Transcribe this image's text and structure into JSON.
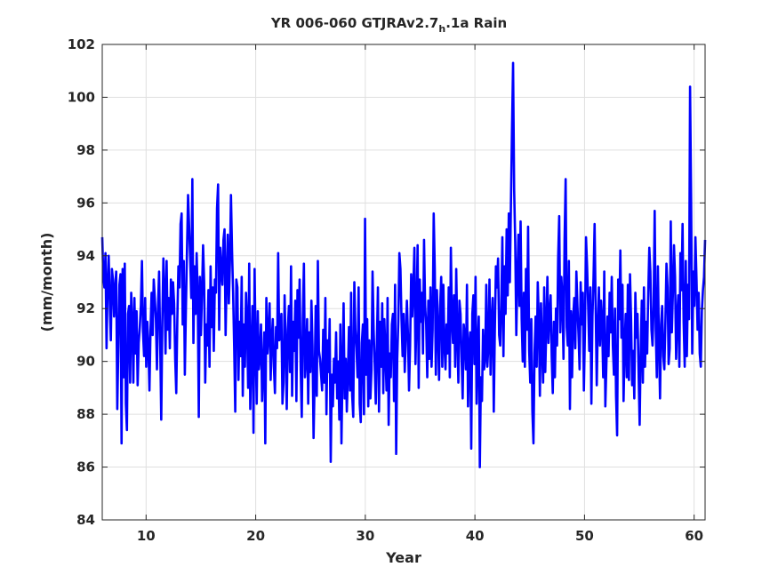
{
  "chart_data": {
    "type": "line",
    "title": {
      "main": "YR 006-060 GTJRAv2.7",
      "subscript": "h",
      "suffix": ".1a Rain"
    },
    "xlabel": "Year",
    "ylabel": "(mm/month)",
    "xlim": [
      6,
      61
    ],
    "ylim": [
      84,
      102
    ],
    "xticks": [
      10,
      20,
      30,
      40,
      50,
      60
    ],
    "yticks": [
      84,
      86,
      88,
      90,
      92,
      94,
      96,
      98,
      100,
      102
    ],
    "grid": true,
    "series": [
      {
        "color": "#0000ff",
        "x_start": 6,
        "x_step": 0.083333,
        "values": [
          94.7,
          93.2,
          92.8,
          94.1,
          90.5,
          92.9,
          94.0,
          92.3,
          90.8,
          93.5,
          93.1,
          91.7,
          92.8,
          93.4,
          88.2,
          90.6,
          92.9,
          93.3,
          86.9,
          93.5,
          89.4,
          93.7,
          88.4,
          87.4,
          91.8,
          92.1,
          89.2,
          92.6,
          91.5,
          89.2,
          92.4,
          90.3,
          91.9,
          89.1,
          90.7,
          91.3,
          92.1,
          93.8,
          91.1,
          90.2,
          92.4,
          89.8,
          91.5,
          90.6,
          88.9,
          91.2,
          92.6,
          91.0,
          93.1,
          92.4,
          91.6,
          89.7,
          92.1,
          93.4,
          90.7,
          87.8,
          91.5,
          93.9,
          92.7,
          90.3,
          93.8,
          91.2,
          92.4,
          90.5,
          93.1,
          91.8,
          93.0,
          92.2,
          90.1,
          88.8,
          91.6,
          93.6,
          92.8,
          95.2,
          95.6,
          91.4,
          93.8,
          89.5,
          92.0,
          94.2,
          96.3,
          95.1,
          93.9,
          92.4,
          96.9,
          90.7,
          93.6,
          91.8,
          94.1,
          92.5,
          87.9,
          93.2,
          91.0,
          92.6,
          94.4,
          93.0,
          89.2,
          91.4,
          90.6,
          92.7,
          89.8,
          93.6,
          91.3,
          92.8,
          90.4,
          93.1,
          92.6,
          95.8,
          96.7,
          91.2,
          94.3,
          93.5,
          92.9,
          94.6,
          95.0,
          91.0,
          93.2,
          94.8,
          92.2,
          93.7,
          96.3,
          94.2,
          92.6,
          90.5,
          88.1,
          93.1,
          92.8,
          89.3,
          91.5,
          90.2,
          93.2,
          88.7,
          91.4,
          89.8,
          92.6,
          91.5,
          89.0,
          93.7,
          88.2,
          90.3,
          92.1,
          87.3,
          93.5,
          90.6,
          88.4,
          91.9,
          89.7,
          90.2,
          91.4,
          88.5,
          89.8,
          91.1,
          86.9,
          92.4,
          90.3,
          91.0,
          92.2,
          89.3,
          90.8,
          91.6,
          89.8,
          88.8,
          91.3,
          90.5,
          94.1,
          90.8,
          90.9,
          91.8,
          88.4,
          89.2,
          92.5,
          90.6,
          88.2,
          91.2,
          92.1,
          89.6,
          93.6,
          88.7,
          91.5,
          90.4,
          92.3,
          88.5,
          92.7,
          90.9,
          93.1,
          89.7,
          87.9,
          91.6,
          93.7,
          89.4,
          90.1,
          91.6,
          88.4,
          91.1,
          89.6,
          92.3,
          90.6,
          87.1,
          89.3,
          92.1,
          88.7,
          93.8,
          90.4,
          90.1,
          89.5,
          88.9,
          91.2,
          89.2,
          92.4,
          88.0,
          90.8,
          89.6,
          91.6,
          86.2,
          89.5,
          88.3,
          90.1,
          89.2,
          91.1,
          88.6,
          90.0,
          87.8,
          91.4,
          86.9,
          89.7,
          92.2,
          88.6,
          90.1,
          88.1,
          89.5,
          91.3,
          88.9,
          92.6,
          88.7,
          87.9,
          93.0,
          91.2,
          90.5,
          89.4,
          92.8,
          88.4,
          87.7,
          90.7,
          91.4,
          88.0,
          95.4,
          89.5,
          91.6,
          88.3,
          90.8,
          88.6,
          89.7,
          93.4,
          91.2,
          89.9,
          88.4,
          90.7,
          92.8,
          88.1,
          91.5,
          89.8,
          92.2,
          88.8,
          91.6,
          90.3,
          88.9,
          92.4,
          87.6,
          90.3,
          89.4,
          91.4,
          91.8,
          88.5,
          92.9,
          86.5,
          90.1,
          91.5,
          94.1,
          93.5,
          91.6,
          90.2,
          91.8,
          89.6,
          90.9,
          92.3,
          91.0,
          88.9,
          90.6,
          93.3,
          91.7,
          92.8,
          94.3,
          89.9,
          91.8,
          94.4,
          89.0,
          93.1,
          91.5,
          92.6,
          90.3,
          94.6,
          92.1,
          91.4,
          89.4,
          92.3,
          90.1,
          92.8,
          89.8,
          91.2,
          95.6,
          93.5,
          89.5,
          92.7,
          91.3,
          89.3,
          92.1,
          93.2,
          89.8,
          92.9,
          90.6,
          89.7,
          91.4,
          90.3,
          92.8,
          89.4,
          94.3,
          91.6,
          90.7,
          92.5,
          89.8,
          93.5,
          91.0,
          89.2,
          92.3,
          91.8,
          90.1,
          88.6,
          91.4,
          90.9,
          89.7,
          92.9,
          88.3,
          90.5,
          91.1,
          86.7,
          91.8,
          92.5,
          89.9,
          93.2,
          88.4,
          90.6,
          91.7,
          86.0,
          89.4,
          88.5,
          91.2,
          89.7,
          90.1,
          92.9,
          89.8,
          90.6,
          93.1,
          89.5,
          91.5,
          92.4,
          88.1,
          91.2,
          93.6,
          92.8,
          93.9,
          91.0,
          90.6,
          92.1,
          94.7,
          90.2,
          93.6,
          91.8,
          95.0,
          92.5,
          95.6,
          93.0,
          96.0,
          98.8,
          101.3,
          96.5,
          94.5,
          91.0,
          93.2,
          94.8,
          92.1,
          95.3,
          91.6,
          90.0,
          92.6,
          89.8,
          93.5,
          91.2,
          95.1,
          90.4,
          89.2,
          91.6,
          88.1,
          86.9,
          90.3,
          91.7,
          89.8,
          93.0,
          91.6,
          88.7,
          92.2,
          90.5,
          89.2,
          92.8,
          89.6,
          91.3,
          93.2,
          90.7,
          91.8,
          92.5,
          90.2,
          88.8,
          91.5,
          89.4,
          92.0,
          90.6,
          93.9,
          95.5,
          91.1,
          93.2,
          92.4,
          90.1,
          94.6,
          96.9,
          91.3,
          90.6,
          93.8,
          88.2,
          91.9,
          89.4,
          91.6,
          92.4,
          90.5,
          93.4,
          92.1,
          91.0,
          89.7,
          93.0,
          91.4,
          92.6,
          88.9,
          91.2,
          94.7,
          93.6,
          92.1,
          90.4,
          92.8,
          88.4,
          91.7,
          93.2,
          95.2,
          92.0,
          89.1,
          91.4,
          92.8,
          90.6,
          92.3,
          91.5,
          89.4,
          93.4,
          88.3,
          89.9,
          91.7,
          90.2,
          92.6,
          91.1,
          93.2,
          90.6,
          89.5,
          92.0,
          88.7,
          87.2,
          93.1,
          91.6,
          94.2,
          90.9,
          92.9,
          88.5,
          90.6,
          91.8,
          89.4,
          92.9,
          89.3,
          93.3,
          91.6,
          89.1,
          90.4,
          88.6,
          92.6,
          90.9,
          91.8,
          89.6,
          87.6,
          90.5,
          92.3,
          89.2,
          92.8,
          89.8,
          91.5,
          90.3,
          92.6,
          94.3,
          93.4,
          91.2,
          90.6,
          92.1,
          95.7,
          91.2,
          89.4,
          93.6,
          90.7,
          88.6,
          91.4,
          92.1,
          90.2,
          89.7,
          91.5,
          93.7,
          92.8,
          89.9,
          90.5,
          95.3,
          91.1,
          92.6,
          94.4,
          93.2,
          90.1,
          91.7,
          92.5,
          89.8,
          94.1,
          92.7,
          95.2,
          91.5,
          89.8,
          93.8,
          90.2,
          92.9,
          91.6,
          100.4,
          96.0,
          90.3,
          93.4,
          92.1,
          94.7,
          93.1,
          91.2,
          92.6,
          90.3,
          89.8,
          91.9,
          92.7,
          93.2,
          94.6
        ]
      }
    ]
  }
}
